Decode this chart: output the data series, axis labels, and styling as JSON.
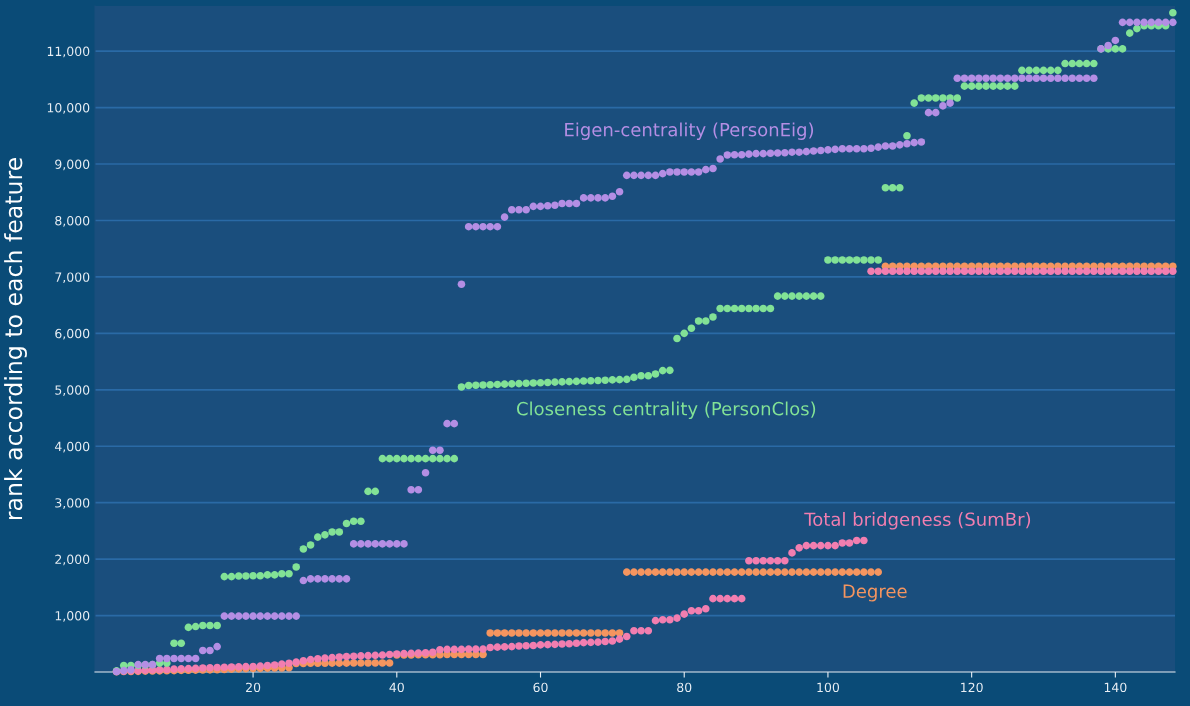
{
  "chart_data": {
    "type": "scatter",
    "ylabel": "rank according to each feature",
    "x": [
      1,
      2,
      3,
      4,
      5,
      6,
      7,
      8,
      9,
      10,
      11,
      12,
      13,
      14,
      15,
      16,
      17,
      18,
      19,
      20,
      21,
      22,
      23,
      24,
      25,
      26,
      27,
      28,
      29,
      30,
      31,
      32,
      33,
      34,
      35,
      36,
      37,
      38,
      39,
      40,
      41,
      42,
      43,
      44,
      45,
      46,
      47,
      48,
      49,
      50,
      51,
      52,
      53,
      54,
      55,
      56,
      57,
      58,
      59,
      60,
      61,
      62,
      63,
      64,
      65,
      66,
      67,
      68,
      69,
      70,
      71,
      72,
      73,
      74,
      75,
      76,
      77,
      78,
      79,
      80,
      81,
      82,
      83,
      84,
      85,
      86,
      87,
      88,
      89,
      90,
      91,
      92,
      93,
      94,
      95,
      96,
      97,
      98,
      99,
      100,
      101,
      102,
      103,
      104,
      105,
      106,
      107,
      108,
      109,
      110,
      111,
      112,
      113,
      114,
      115,
      116,
      117,
      118,
      119,
      120,
      121,
      122,
      123,
      124,
      125,
      126,
      127,
      128,
      129,
      130,
      131,
      132,
      133,
      134,
      135,
      136,
      137,
      138,
      139,
      140,
      141,
      142,
      143,
      144,
      145,
      146,
      147,
      148
    ],
    "series": [
      {
        "name": "Eigen-centrality (PersonEig)",
        "color": "#b48ee4",
        "values": [
          10,
          25,
          40,
          130,
          130,
          130,
          240,
          240,
          240,
          240,
          240,
          240,
          380,
          380,
          450,
          990,
          990,
          990,
          990,
          990,
          990,
          990,
          990,
          990,
          990,
          990,
          1620,
          1650,
          1650,
          1650,
          1650,
          1650,
          1650,
          2270,
          2270,
          2270,
          2270,
          2270,
          2270,
          2270,
          2270,
          3230,
          3230,
          3530,
          3930,
          3930,
          4400,
          4400,
          6870,
          7890,
          7890,
          7890,
          7890,
          7890,
          8060,
          8190,
          8190,
          8190,
          8250,
          8250,
          8260,
          8270,
          8300,
          8300,
          8300,
          8400,
          8400,
          8400,
          8400,
          8430,
          8510,
          8800,
          8800,
          8800,
          8800,
          8800,
          8830,
          8860,
          8860,
          8860,
          8860,
          8860,
          8900,
          8920,
          9090,
          9160,
          9165,
          9165,
          9175,
          9185,
          9185,
          9190,
          9195,
          9200,
          9210,
          9210,
          9220,
          9230,
          9240,
          9250,
          9260,
          9270,
          9270,
          9270,
          9270,
          9280,
          9300,
          9320,
          9320,
          9340,
          9360,
          9380,
          9390,
          9910,
          9910,
          10030,
          10080,
          10520,
          10520,
          10520,
          10520,
          10520,
          10520,
          10520,
          10520,
          10520,
          10520,
          10520,
          10520,
          10520,
          10520,
          10520,
          10520,
          10520,
          10520,
          10520,
          10520,
          11040,
          11100,
          11190,
          11510,
          11510,
          11510,
          11510,
          11510,
          11510,
          11510,
          11510
        ]
      },
      {
        "name": "Closeness centrality (PersonClos)",
        "color": "#82e296",
        "values": [
          20,
          115,
          115,
          120,
          125,
          130,
          158,
          158,
          510,
          510,
          790,
          805,
          825,
          825,
          825,
          1690,
          1690,
          1700,
          1700,
          1705,
          1705,
          1720,
          1720,
          1740,
          1740,
          1860,
          2180,
          2250,
          2390,
          2430,
          2480,
          2480,
          2630,
          2670,
          2670,
          3200,
          3200,
          3780,
          3780,
          3780,
          3780,
          3780,
          3780,
          3780,
          3780,
          3780,
          3780,
          3780,
          5050,
          5075,
          5080,
          5085,
          5090,
          5095,
          5100,
          5105,
          5110,
          5115,
          5120,
          5125,
          5130,
          5135,
          5140,
          5145,
          5150,
          5155,
          5160,
          5165,
          5170,
          5175,
          5180,
          5185,
          5220,
          5250,
          5250,
          5280,
          5340,
          5345,
          5910,
          6000,
          6090,
          6220,
          6220,
          6290,
          6440,
          6440,
          6440,
          6440,
          6440,
          6440,
          6440,
          6440,
          6660,
          6660,
          6660,
          6660,
          6660,
          6660,
          6660,
          7300,
          7300,
          7300,
          7300,
          7300,
          7300,
          7300,
          7300,
          8580,
          8580,
          8580,
          9500,
          10080,
          10170,
          10170,
          10170,
          10170,
          10170,
          10170,
          10380,
          10380,
          10380,
          10380,
          10380,
          10380,
          10380,
          10380,
          10660,
          10660,
          10660,
          10660,
          10660,
          10660,
          10780,
          10780,
          10780,
          10780,
          10780,
          11040,
          11040,
          11040,
          11040,
          11320,
          11400,
          11450,
          11450,
          11450,
          11450,
          11680
        ]
      },
      {
        "name": "Total bridgeness (SumBr)",
        "color": "#f27eb0",
        "values": [
          10,
          15,
          20,
          25,
          30,
          35,
          40,
          45,
          50,
          55,
          60,
          65,
          70,
          75,
          80,
          85,
          88,
          90,
          95,
          98,
          105,
          115,
          125,
          140,
          155,
          175,
          200,
          220,
          235,
          245,
          255,
          265,
          275,
          280,
          285,
          290,
          295,
          300,
          310,
          320,
          325,
          330,
          335,
          340,
          350,
          395,
          400,
          400,
          400,
          405,
          405,
          405,
          435,
          440,
          445,
          450,
          460,
          465,
          470,
          480,
          485,
          490,
          495,
          500,
          510,
          520,
          525,
          530,
          540,
          550,
          583,
          630,
          730,
          730,
          730,
          910,
          925,
          925,
          955,
          1025,
          1085,
          1085,
          1120,
          1300,
          1300,
          1300,
          1300,
          1300,
          1970,
          1970,
          1970,
          1970,
          1970,
          1970,
          2110,
          2200,
          2240,
          2240,
          2240,
          2240,
          2240,
          2285,
          2285,
          2330,
          2330,
          7100,
          7100,
          7100,
          7100,
          7100,
          7100,
          7100,
          7100,
          7100,
          7100,
          7100,
          7100,
          7100,
          7100,
          7100,
          7100,
          7100,
          7100,
          7100,
          7100,
          7100,
          7100,
          7100,
          7100,
          7100,
          7100,
          7100,
          7100,
          7100,
          7100,
          7100,
          7100,
          7100,
          7100,
          7100,
          7100,
          7100,
          7100,
          7100,
          7100,
          7100,
          7100,
          7100
        ]
      },
      {
        "name": "Degree",
        "color": "#f5955f",
        "values": [
          5,
          8,
          10,
          12,
          15,
          18,
          20,
          22,
          25,
          28,
          30,
          33,
          35,
          38,
          40,
          45,
          50,
          55,
          60,
          62,
          65,
          68,
          70,
          72,
          75,
          150,
          150,
          155,
          155,
          155,
          157,
          157,
          157,
          160,
          160,
          160,
          160,
          160,
          160,
          300,
          300,
          300,
          305,
          305,
          305,
          305,
          310,
          310,
          310,
          310,
          310,
          310,
          690,
          690,
          690,
          690,
          690,
          690,
          690,
          690,
          690,
          690,
          690,
          690,
          690,
          690,
          690,
          690,
          690,
          690,
          690,
          1770,
          1770,
          1770,
          1770,
          1770,
          1770,
          1770,
          1770,
          1770,
          1770,
          1770,
          1770,
          1770,
          1770,
          1770,
          1770,
          1770,
          1770,
          1770,
          1770,
          1770,
          1770,
          1770,
          1770,
          1770,
          1770,
          1770,
          1770,
          1770,
          1770,
          1770,
          1770,
          1770,
          1770,
          1770,
          1770,
          7190,
          7190,
          7190,
          7190,
          7190,
          7190,
          7190,
          7190,
          7190,
          7190,
          7190,
          7190,
          7190,
          7190,
          7190,
          7190,
          7190,
          7190,
          7190,
          7190,
          7190,
          7190,
          7190,
          7190,
          7190,
          7190,
          7190,
          7190,
          7190,
          7190,
          7190,
          7190,
          7190,
          7190,
          7190,
          7190,
          7190,
          7190,
          7190,
          7190,
          7190
        ]
      }
    ],
    "xlim": [
      -2,
      148.3
    ],
    "ylim": [
      0,
      11800
    ],
    "xticks": [
      20,
      40,
      60,
      80,
      100,
      120,
      140
    ],
    "yticks": [
      {
        "value": 1000,
        "label": "1,000"
      },
      {
        "value": 2000,
        "label": "2,000"
      },
      {
        "value": 3000,
        "label": "3,000"
      },
      {
        "value": 4000,
        "label": "4,000"
      },
      {
        "value": 5000,
        "label": "5,000"
      },
      {
        "value": 6000,
        "label": "6,000"
      },
      {
        "value": 7000,
        "label": "7,000"
      },
      {
        "value": 8000,
        "label": "8,000"
      },
      {
        "value": 9000,
        "label": "9,000"
      },
      {
        "value": 10000,
        "label": "10,000"
      },
      {
        "value": 11000,
        "label": "11,000"
      }
    ],
    "grid": "y",
    "legend": false,
    "marker": "circle"
  }
}
